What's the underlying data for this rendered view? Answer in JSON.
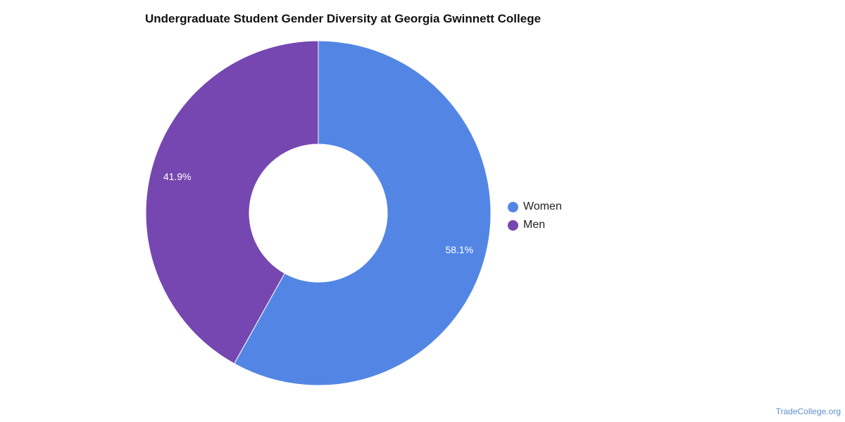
{
  "chart_data": {
    "type": "pie",
    "title": "Undergraduate Student Gender Diversity at Georgia Gwinnett College",
    "donut": true,
    "start_angle": "12 o'clock, clockwise",
    "slices": [
      {
        "label": "Women",
        "value": 58.1,
        "display": "58.1%",
        "color": "#5386e4"
      },
      {
        "label": "Men",
        "value": 41.9,
        "display": "41.9%",
        "color": "#7647b0"
      }
    ],
    "legend_position": "right"
  },
  "watermark": "TradeCollege.org"
}
